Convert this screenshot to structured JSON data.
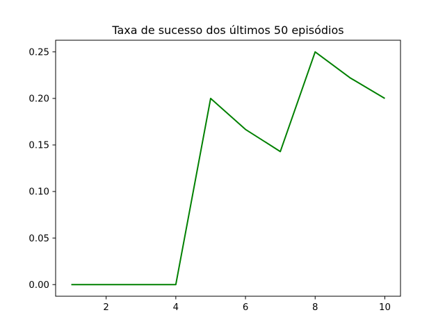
{
  "chart_data": {
    "type": "line",
    "title": "Taxa de sucesso dos últimos 50 episódios",
    "xlabel": "",
    "ylabel": "",
    "x": [
      1,
      2,
      3,
      4,
      5,
      6,
      7,
      8,
      9,
      10
    ],
    "series": [
      {
        "values": [
          0.0,
          0.0,
          0.0,
          0.0,
          0.2,
          0.1667,
          0.1429,
          0.25,
          0.2222,
          0.2
        ],
        "color": "#008000"
      }
    ],
    "xlim": [
      0.55,
      10.45
    ],
    "ylim": [
      -0.0125,
      0.2625
    ],
    "xticks": [
      2,
      4,
      6,
      8,
      10
    ],
    "xtick_labels": [
      "2",
      "4",
      "6",
      "8",
      "10"
    ],
    "yticks": [
      0.0,
      0.05,
      0.1,
      0.15,
      0.2,
      0.25
    ],
    "ytick_labels": [
      "0.00",
      "0.05",
      "0.10",
      "0.15",
      "0.20",
      "0.25"
    ],
    "grid": false,
    "legend": false
  }
}
